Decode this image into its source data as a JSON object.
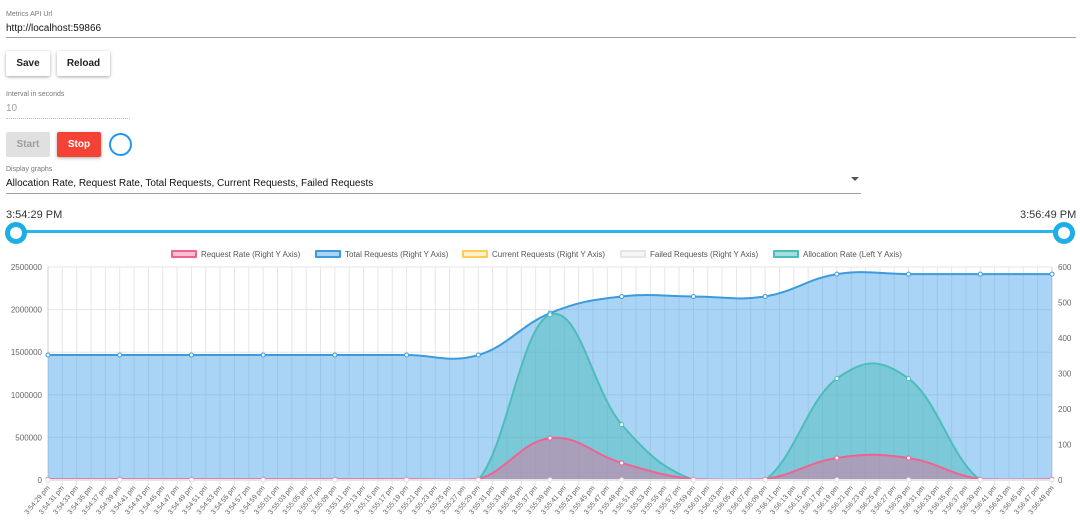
{
  "metrics_api": {
    "label": "Metrics API Url",
    "value": "http://localhost:59866"
  },
  "buttons": {
    "save": "Save",
    "reload": "Reload",
    "start": "Start",
    "stop": "Stop"
  },
  "interval": {
    "label": "Interval in seconds",
    "value": "10"
  },
  "display_graphs": {
    "label": "Display graphs",
    "value": "Allocation Rate, Request Rate, Total Requests, Current Requests, Failed Requests"
  },
  "range": {
    "start": "3:54:29 PM",
    "end": "3:56:49 PM"
  },
  "colors": {
    "accent": "#1eaee6",
    "stop": "#f44336",
    "spinner": "#2196f3"
  },
  "chart_data": {
    "type": "area",
    "legend_position": "top",
    "grid": true,
    "x": [
      "3:54:29 pm",
      "3:54:31 pm",
      "3:54:33 pm",
      "3:54:35 pm",
      "3:54:37 pm",
      "3:54:39 pm",
      "3:54:41 pm",
      "3:54:43 pm",
      "3:54:45 pm",
      "3:54:47 pm",
      "3:54:49 pm",
      "3:54:51 pm",
      "3:54:53 pm",
      "3:54:55 pm",
      "3:54:57 pm",
      "3:54:59 pm",
      "3:55:01 pm",
      "3:55:03 pm",
      "3:55:05 pm",
      "3:55:07 pm",
      "3:55:09 pm",
      "3:55:11 pm",
      "3:55:13 pm",
      "3:55:15 pm",
      "3:55:17 pm",
      "3:55:19 pm",
      "3:55:21 pm",
      "3:55:23 pm",
      "3:55:25 pm",
      "3:55:27 pm",
      "3:55:29 pm",
      "3:55:31 pm",
      "3:55:33 pm",
      "3:55:35 pm",
      "3:55:37 pm",
      "3:55:39 pm",
      "3:55:41 pm",
      "3:55:43 pm",
      "3:55:45 pm",
      "3:55:47 pm",
      "3:55:49 pm",
      "3:55:51 pm",
      "3:55:53 pm",
      "3:55:55 pm",
      "3:55:57 pm",
      "3:55:59 pm",
      "3:56:01 pm",
      "3:56:03 pm",
      "3:56:05 pm",
      "3:56:07 pm",
      "3:56:09 pm",
      "3:56:11 pm",
      "3:56:13 pm",
      "3:56:15 pm",
      "3:56:17 pm",
      "3:56:19 pm",
      "3:56:21 pm",
      "3:56:23 pm",
      "3:56:25 pm",
      "3:56:27 pm",
      "3:56:29 pm",
      "3:56:31 pm",
      "3:56:33 pm",
      "3:56:35 pm",
      "3:56:37 pm",
      "3:56:39 pm",
      "3:56:41 pm",
      "3:56:43 pm",
      "3:56:45 pm",
      "3:56:47 pm",
      "3:56:49 pm"
    ],
    "y_left": {
      "min": 0,
      "max": 2500000,
      "ticks": [
        "0",
        "500000",
        "1000000",
        "1500000",
        "2000000",
        "2500000"
      ]
    },
    "y_right": {
      "min": 0,
      "max": 600,
      "ticks": [
        "0",
        "100",
        "200",
        "300",
        "400",
        "500",
        "600"
      ]
    },
    "series": [
      {
        "name": "Request Rate (Right Y Axis)",
        "axis": "right",
        "stroke": "#f06292",
        "fill": "rgba(240,98,146,0.4)",
        "points": [
          [
            "3:54:29 pm",
            2
          ],
          [
            "3:54:39 pm",
            2
          ],
          [
            "3:54:49 pm",
            2
          ],
          [
            "3:54:59 pm",
            2
          ],
          [
            "3:55:09 pm",
            2
          ],
          [
            "3:55:19 pm",
            2
          ],
          [
            "3:55:29 pm",
            2
          ],
          [
            "3:55:39 pm",
            118
          ],
          [
            "3:55:49 pm",
            48
          ],
          [
            "3:55:59 pm",
            2
          ],
          [
            "3:56:09 pm",
            2
          ],
          [
            "3:56:19 pm",
            62
          ],
          [
            "3:56:29 pm",
            62
          ],
          [
            "3:56:39 pm",
            2
          ],
          [
            "3:56:49 pm",
            2
          ]
        ]
      },
      {
        "name": "Total Requests (Right Y Axis)",
        "axis": "right",
        "stroke": "#3b9bdc",
        "fill": "rgba(66,160,235,0.45)",
        "points": [
          [
            "3:54:29 pm",
            352
          ],
          [
            "3:54:39 pm",
            352
          ],
          [
            "3:54:49 pm",
            352
          ],
          [
            "3:54:59 pm",
            352
          ],
          [
            "3:55:09 pm",
            352
          ],
          [
            "3:55:19 pm",
            352
          ],
          [
            "3:55:29 pm",
            352
          ],
          [
            "3:55:39 pm",
            470
          ],
          [
            "3:55:49 pm",
            517
          ],
          [
            "3:55:59 pm",
            517
          ],
          [
            "3:56:09 pm",
            517
          ],
          [
            "3:56:19 pm",
            580
          ],
          [
            "3:56:29 pm",
            580
          ],
          [
            "3:56:39 pm",
            580
          ],
          [
            "3:56:49 pm",
            580
          ]
        ]
      },
      {
        "name": "Current Requests (Right Y Axis)",
        "axis": "right",
        "stroke": "#ffcc55",
        "fill": "rgba(255,206,86,0.3)",
        "points": [
          [
            "3:54:29 pm",
            0
          ],
          [
            "3:54:39 pm",
            0
          ],
          [
            "3:54:49 pm",
            0
          ],
          [
            "3:54:59 pm",
            0
          ],
          [
            "3:55:09 pm",
            0
          ],
          [
            "3:55:19 pm",
            0
          ],
          [
            "3:55:29 pm",
            0
          ],
          [
            "3:55:39 pm",
            0
          ],
          [
            "3:55:49 pm",
            0
          ],
          [
            "3:55:59 pm",
            0
          ],
          [
            "3:56:09 pm",
            0
          ],
          [
            "3:56:19 pm",
            0
          ],
          [
            "3:56:29 pm",
            0
          ],
          [
            "3:56:39 pm",
            0
          ],
          [
            "3:56:49 pm",
            0
          ]
        ]
      },
      {
        "name": "Failed Requests (Right Y Axis)",
        "axis": "right",
        "stroke": "#e3e5e8",
        "fill": "rgba(230,232,236,0.4)",
        "points": [
          [
            "3:54:29 pm",
            0
          ],
          [
            "3:54:39 pm",
            0
          ],
          [
            "3:54:49 pm",
            0
          ],
          [
            "3:54:59 pm",
            0
          ],
          [
            "3:55:09 pm",
            0
          ],
          [
            "3:55:19 pm",
            0
          ],
          [
            "3:55:29 pm",
            0
          ],
          [
            "3:55:39 pm",
            0
          ],
          [
            "3:55:49 pm",
            0
          ],
          [
            "3:55:59 pm",
            0
          ],
          [
            "3:56:09 pm",
            0
          ],
          [
            "3:56:19 pm",
            0
          ],
          [
            "3:56:29 pm",
            0
          ],
          [
            "3:56:39 pm",
            0
          ],
          [
            "3:56:49 pm",
            0
          ]
        ]
      },
      {
        "name": "Allocation Rate (Left Y Axis)",
        "axis": "left",
        "stroke": "#4cbdb9",
        "fill": "rgba(76,189,185,0.5)",
        "points": [
          [
            "3:54:29 pm",
            0
          ],
          [
            "3:54:39 pm",
            0
          ],
          [
            "3:54:49 pm",
            0
          ],
          [
            "3:54:59 pm",
            0
          ],
          [
            "3:55:09 pm",
            0
          ],
          [
            "3:55:19 pm",
            0
          ],
          [
            "3:55:29 pm",
            0
          ],
          [
            "3:55:39 pm",
            1940000
          ],
          [
            "3:55:49 pm",
            650000
          ],
          [
            "3:55:59 pm",
            0
          ],
          [
            "3:56:09 pm",
            0
          ],
          [
            "3:56:19 pm",
            1190000
          ],
          [
            "3:56:29 pm",
            1190000
          ],
          [
            "3:56:39 pm",
            0
          ],
          [
            "3:56:49 pm",
            0
          ]
        ]
      }
    ]
  }
}
